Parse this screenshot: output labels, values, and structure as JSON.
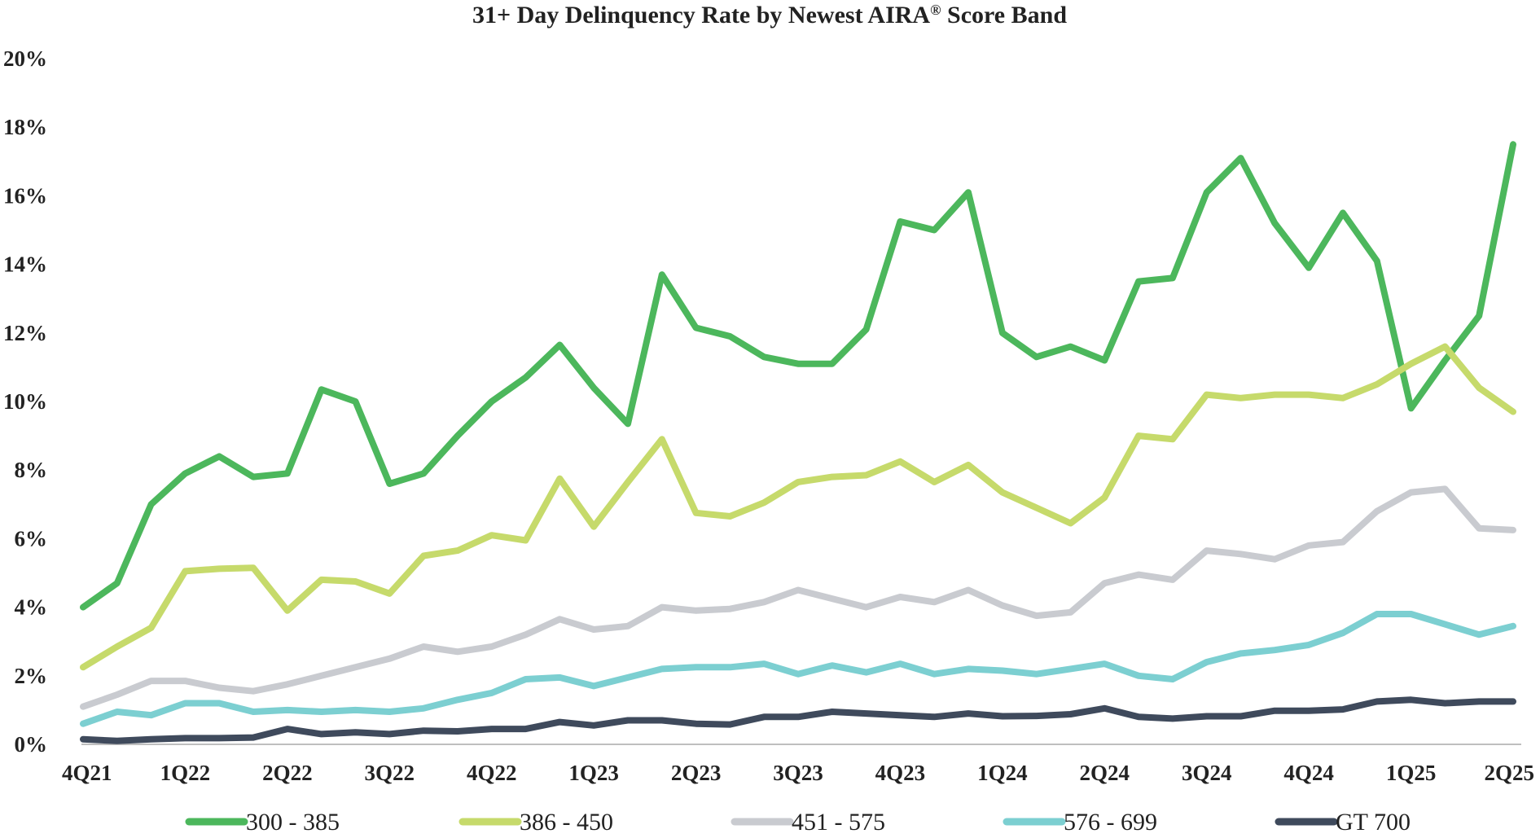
{
  "chart_data": {
    "type": "line",
    "title": "31+ Day Delinquency Rate by Newest AIRA",
    "title_sup": "®",
    "title_tail": " Score Band",
    "xlabel": "",
    "ylabel": "",
    "ylim": [
      0,
      20
    ],
    "y_ticks": [
      "0%",
      "2%",
      "4%",
      "6%",
      "8%",
      "10%",
      "12%",
      "14%",
      "16%",
      "18%",
      "20%"
    ],
    "x_tick_labels": [
      {
        "label": "4Q21",
        "index": 0
      },
      {
        "label": "1Q22",
        "index": 3
      },
      {
        "label": "2Q22",
        "index": 6
      },
      {
        "label": "3Q22",
        "index": 9
      },
      {
        "label": "4Q22",
        "index": 12
      },
      {
        "label": "1Q23",
        "index": 15
      },
      {
        "label": "2Q23",
        "index": 18
      },
      {
        "label": "3Q23",
        "index": 21
      },
      {
        "label": "4Q23",
        "index": 24
      },
      {
        "label": "1Q24",
        "index": 27
      },
      {
        "label": "2Q24",
        "index": 30
      },
      {
        "label": "3Q24",
        "index": 33
      },
      {
        "label": "4Q24",
        "index": 36
      },
      {
        "label": "1Q25",
        "index": 39
      },
      {
        "label": "2Q25",
        "index": 42
      }
    ],
    "grid": false,
    "legend": "bottom",
    "series": [
      {
        "name": "300 - 385",
        "color": "#4cb75c",
        "values": [
          4.0,
          4.7,
          7.0,
          7.9,
          8.4,
          7.8,
          7.9,
          10.35,
          10.0,
          7.6,
          7.9,
          9.0,
          10.0,
          10.7,
          11.65,
          10.4,
          9.35,
          13.7,
          12.15,
          11.9,
          11.3,
          11.1,
          11.1,
          12.1,
          15.25,
          15.0,
          16.1,
          12.0,
          11.3,
          11.6,
          11.2,
          13.5,
          13.6,
          16.1,
          17.1,
          15.2,
          13.9,
          15.5,
          14.1,
          9.8,
          11.2,
          12.5,
          17.5
        ]
      },
      {
        "name": "386 - 450",
        "color": "#c6da6b",
        "values": [
          2.25,
          2.85,
          3.4,
          5.05,
          5.12,
          5.15,
          3.9,
          4.8,
          4.75,
          4.4,
          5.5,
          5.65,
          6.1,
          5.95,
          7.75,
          6.35,
          7.65,
          8.9,
          6.75,
          6.65,
          7.05,
          7.65,
          7.8,
          7.85,
          8.25,
          7.65,
          8.15,
          7.35,
          6.9,
          6.45,
          7.2,
          9.0,
          8.9,
          10.2,
          10.1,
          10.2,
          10.2,
          10.1,
          10.5,
          11.1,
          11.6,
          10.4,
          9.7
        ]
      },
      {
        "name": "451 - 575",
        "color": "#c9cbd0",
        "values": [
          1.1,
          1.45,
          1.85,
          1.85,
          1.65,
          1.55,
          1.75,
          2.0,
          2.25,
          2.5,
          2.85,
          2.7,
          2.85,
          3.2,
          3.65,
          3.35,
          3.45,
          4.0,
          3.9,
          3.95,
          4.15,
          4.5,
          4.25,
          4.0,
          4.3,
          4.15,
          4.5,
          4.05,
          3.75,
          3.85,
          4.7,
          4.95,
          4.8,
          5.65,
          5.55,
          5.4,
          5.8,
          5.9,
          6.8,
          7.35,
          7.45,
          6.3,
          6.25
        ]
      },
      {
        "name": "576 - 699",
        "color": "#7ccfd1",
        "values": [
          0.6,
          0.95,
          0.85,
          1.2,
          1.2,
          0.95,
          1.0,
          0.95,
          1.0,
          0.95,
          1.05,
          1.3,
          1.5,
          1.9,
          1.95,
          1.7,
          1.95,
          2.2,
          2.25,
          2.25,
          2.35,
          2.05,
          2.3,
          2.1,
          2.35,
          2.05,
          2.2,
          2.15,
          2.05,
          2.2,
          2.35,
          2.0,
          1.9,
          2.4,
          2.65,
          2.75,
          2.9,
          3.25,
          3.8,
          3.8,
          3.5,
          3.2,
          3.45
        ]
      },
      {
        "name": "GT 700",
        "color": "#3f4a5c",
        "values": [
          0.15,
          0.1,
          0.15,
          0.18,
          0.18,
          0.2,
          0.45,
          0.3,
          0.35,
          0.3,
          0.4,
          0.38,
          0.45,
          0.45,
          0.65,
          0.55,
          0.7,
          0.7,
          0.6,
          0.58,
          0.8,
          0.8,
          0.95,
          0.9,
          0.85,
          0.8,
          0.9,
          0.82,
          0.83,
          0.88,
          1.05,
          0.8,
          0.75,
          0.82,
          0.82,
          0.98,
          0.98,
          1.02,
          1.25,
          1.3,
          1.2,
          1.25,
          1.25
        ]
      }
    ]
  }
}
